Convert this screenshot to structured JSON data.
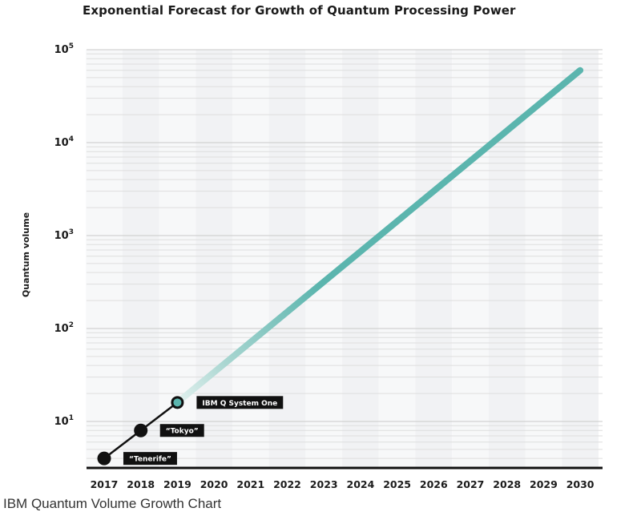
{
  "chart_data": {
    "type": "line",
    "title": "Exponential Forecast for Growth of Quantum Processing Power",
    "ylabel": "Quantum volume",
    "xlabel": "",
    "x_ticks": [
      "2017",
      "2018",
      "2019",
      "2020",
      "2021",
      "2022",
      "2023",
      "2024",
      "2025",
      "2026",
      "2027",
      "2028",
      "2029",
      "2030"
    ],
    "y_scale": "log",
    "y_ticks": [
      {
        "base": "10",
        "exp": "1"
      },
      {
        "base": "10",
        "exp": "2"
      },
      {
        "base": "10",
        "exp": "3"
      },
      {
        "base": "10",
        "exp": "4"
      },
      {
        "base": "10",
        "exp": "5"
      }
    ],
    "ylim": [
      3,
      100000
    ],
    "grid": true,
    "series": [
      {
        "values": [
          {
            "x": 2017,
            "y": 4,
            "label": "“Tenerife”"
          },
          {
            "x": 2018,
            "y": 8,
            "label": "“Tokyo”"
          },
          {
            "x": 2019,
            "y": 16,
            "label": "IBM Q System One"
          }
        ],
        "color": "#111111"
      },
      {
        "values": [
          {
            "x": 2019,
            "y": 16
          },
          {
            "x": 2030,
            "y": 60000
          }
        ],
        "color": "#5bb5ae"
      }
    ]
  },
  "caption": "IBM Quantum Volume Growth Chart"
}
